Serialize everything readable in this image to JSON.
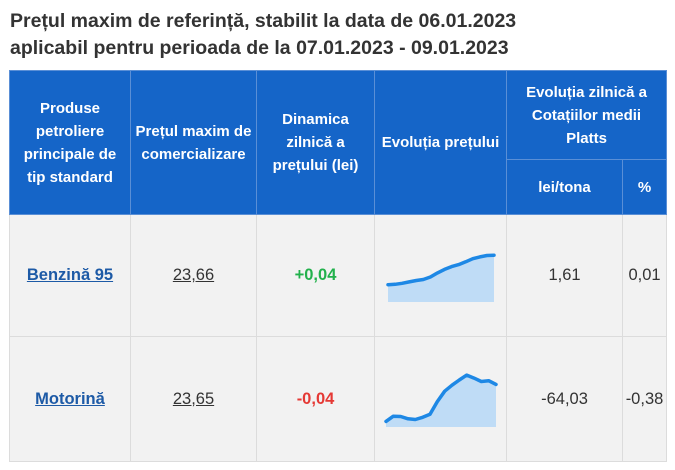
{
  "page": {
    "title_line1": "Prețul maxim de referință, stabilit la data de 06.01.2023",
    "title_line2": "aplicabil pentru perioada de la 07.01.2023 - 09.01.2023"
  },
  "table": {
    "headers": {
      "product": "Produse petroliere principale de tip standard",
      "max_price": "Prețul maxim de comercializare",
      "dynamics": "Dinamica zilnică a prețului (lei)",
      "evolution": "Evoluția prețului",
      "platts": "Evoluția zilnică a Cotațiilor medii Platts",
      "lei_tona": "lei/tona",
      "percent": "%"
    },
    "rows": [
      {
        "product": "Benzină 95",
        "price": "23,66",
        "dynamics": "+0,04",
        "dynamics_sign": "positive",
        "trend": [
          5.0,
          5.1,
          5.4,
          5.8,
          6.2,
          6.5,
          7.2,
          8.4,
          9.4,
          10.2,
          10.8,
          11.6,
          12.5,
          13.0,
          13.4,
          13.5
        ],
        "platts_lei_tona": "1,61",
        "platts_percent": "0,01"
      },
      {
        "product": "Motorină",
        "price": "23,65",
        "dynamics": "-0,04",
        "dynamics_sign": "negative",
        "trend": [
          1.5,
          2.9,
          2.8,
          2.2,
          2.0,
          2.6,
          3.4,
          6.8,
          9.6,
          11.2,
          12.6,
          13.9,
          13.1,
          12.2,
          12.4,
          11.4
        ],
        "platts_lei_tona": "-64,03",
        "platts_percent": "-0,38"
      }
    ]
  },
  "colors": {
    "header_bg": "#1565c8",
    "positive": "#22b14c",
    "negative": "#e53935",
    "spark_line": "#1e88e5",
    "spark_fill": "#bfdcf6"
  }
}
